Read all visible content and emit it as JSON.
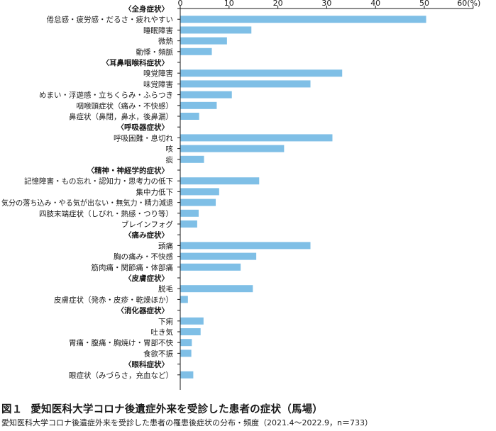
{
  "chart_data": {
    "type": "bar",
    "orientation": "horizontal",
    "xlim": [
      0,
      60
    ],
    "x_ticks": [
      "0",
      "10",
      "20",
      "30",
      "40",
      "50",
      "60(%)"
    ],
    "grid": false,
    "bar_color": "#7fbfe6",
    "rows": [
      {
        "label": "〈全身症状〉",
        "section": true
      },
      {
        "label": "倦怠感・疲労感・だるさ・疲れやすい",
        "value": 50.3
      },
      {
        "label": "睡眠障害",
        "value": 14.5
      },
      {
        "label": "微熱",
        "value": 9.5
      },
      {
        "label": "動悸・頻脈",
        "value": 6.4
      },
      {
        "label": "〈耳鼻咽喉科症状〉",
        "section": true
      },
      {
        "label": "嗅覚障害",
        "value": 33.1
      },
      {
        "label": "味覚障害",
        "value": 26.6
      },
      {
        "label": "めまい・浮遊感・立ちくらみ・ふらつき",
        "value": 10.5
      },
      {
        "label": "咽喉頭症状（痛み・不快感）",
        "value": 7.4
      },
      {
        "label": "鼻症状（鼻閉，鼻水，後鼻漏）",
        "value": 3.8
      },
      {
        "label": "〈呼吸器症状〉",
        "section": true
      },
      {
        "label": "呼吸困難・息切れ",
        "value": 31.1
      },
      {
        "label": "咳",
        "value": 21.2
      },
      {
        "label": "痰",
        "value": 4.8
      },
      {
        "label": "〈精神・神経学的症状〉",
        "section": true
      },
      {
        "label": "記憶障害・もの忘れ・認知力・思考力の低下",
        "value": 16.1
      },
      {
        "label": "集中力低下",
        "value": 7.9
      },
      {
        "label": "気分の落ち込み・やる気が出ない・無気力・精力減退",
        "value": 7.2
      },
      {
        "label": "四肢末端症状（しびれ・熱感・つり等）",
        "value": 3.7
      },
      {
        "label": "ブレインフォグ",
        "value": 3.4
      },
      {
        "label": "〈痛み症状〉",
        "section": true
      },
      {
        "label": "頭痛",
        "value": 26.6
      },
      {
        "label": "胸の痛み・不快感",
        "value": 15.5
      },
      {
        "label": "筋肉痛・関節痛・体部痛",
        "value": 12.3
      },
      {
        "label": "〈皮膚症状〉",
        "section": true
      },
      {
        "label": "脱毛",
        "value": 14.8
      },
      {
        "label": "皮膚症状（発赤・皮疹・乾燥ほか）",
        "value": 1.5
      },
      {
        "label": "〈消化器症状〉",
        "section": true
      },
      {
        "label": "下痢",
        "value": 4.7
      },
      {
        "label": "吐き気",
        "value": 4.1
      },
      {
        "label": "胃痛・腹痛・胸焼け・胃部不快",
        "value": 2.3
      },
      {
        "label": "食欲不振",
        "value": 2.2
      },
      {
        "label": "〈眼科症状〉",
        "section": true
      },
      {
        "label": "眼症状（みづらさ，充血など）",
        "value": 2.6
      }
    ]
  },
  "caption": {
    "figure_number": "図１",
    "title": "愛知医科大学コロナ後遺症外来を受診した患者の症状（馬場）",
    "subtitle": "愛知医科大学コロナ後遺症外来を受診した患者の罹患後症状の分布・頻度（2021.4〜2022.9，n＝733）"
  }
}
